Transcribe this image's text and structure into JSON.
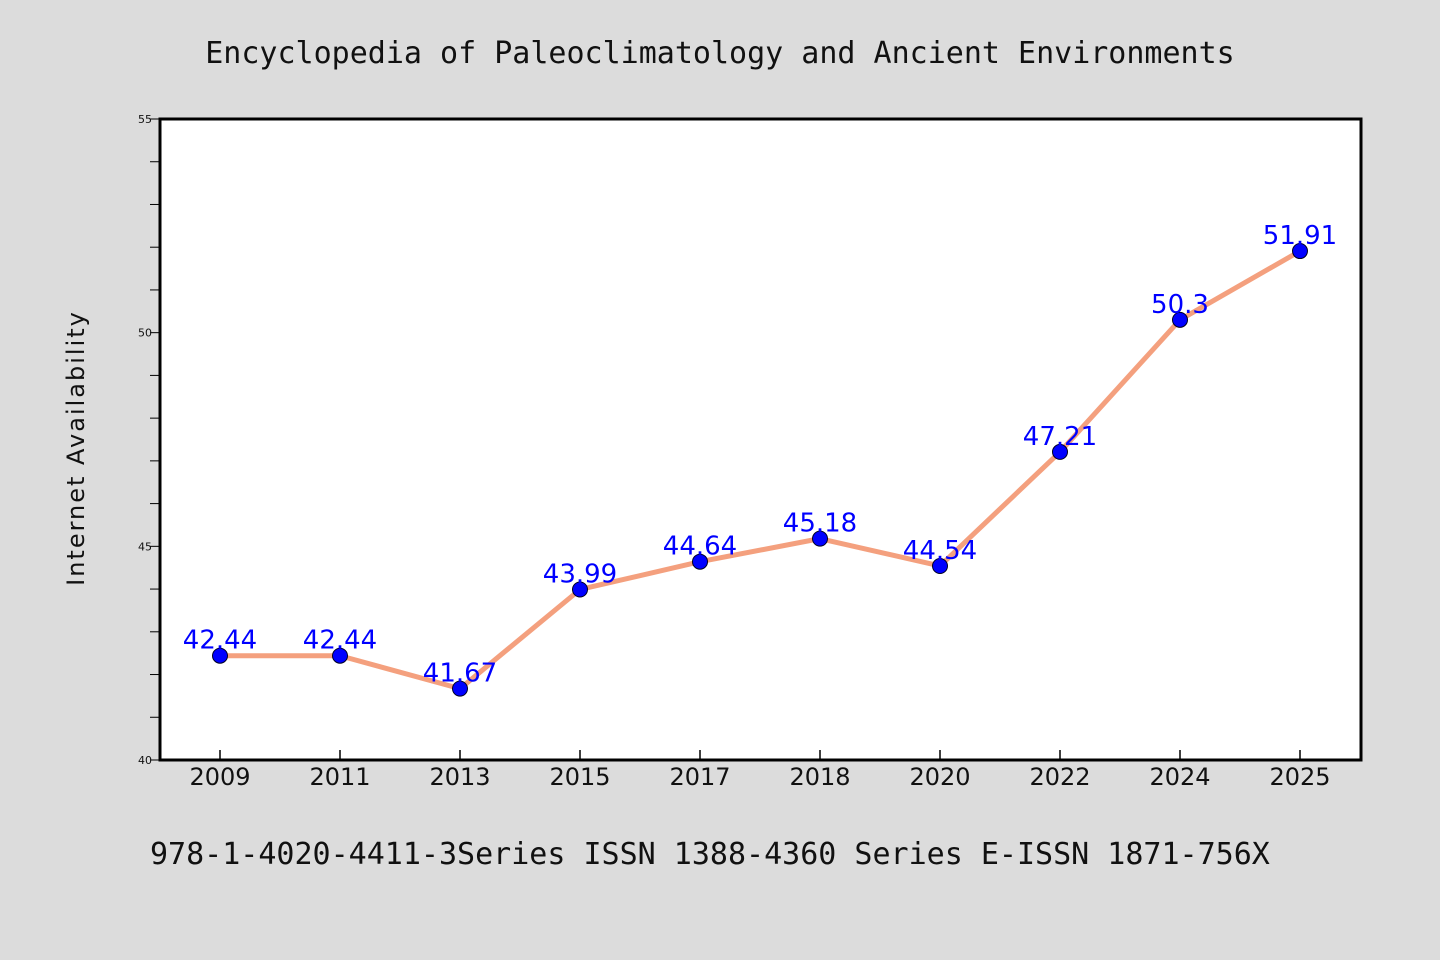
{
  "chart_data": {
    "type": "line",
    "title": "Encyclopedia of Paleoclimatology and Ancient Environments",
    "subtitle": "978-1-4020-4411-3Series ISSN 1388-4360 Series E-ISSN 1871-756X",
    "xlabel": "",
    "ylabel": "Internet Availability",
    "categories": [
      "2009",
      "2011",
      "2013",
      "2015",
      "2017",
      "2018",
      "2020",
      "2022",
      "2024",
      "2025"
    ],
    "series": [
      {
        "values": [
          42.44,
          42.44,
          41.67,
          43.99,
          44.64,
          45.18,
          44.54,
          47.21,
          50.3,
          51.91
        ],
        "labels": [
          "42.44",
          "42.44",
          "41.67",
          "43.99",
          "44.64",
          "45.18",
          "44.54",
          "47.21",
          "50.3",
          "51.91"
        ]
      }
    ],
    "ylim": [
      40,
      55
    ],
    "yticks": [
      40,
      45,
      50,
      55
    ],
    "ytick_labels": [
      "40",
      "45",
      "50",
      "55"
    ],
    "grid": false,
    "colors": {
      "line": "#f4a07e",
      "marker": "#0000ff",
      "data_label": "#0000ff",
      "plot_background": "#ffffff",
      "figure_background": "#dcdcdc"
    }
  }
}
